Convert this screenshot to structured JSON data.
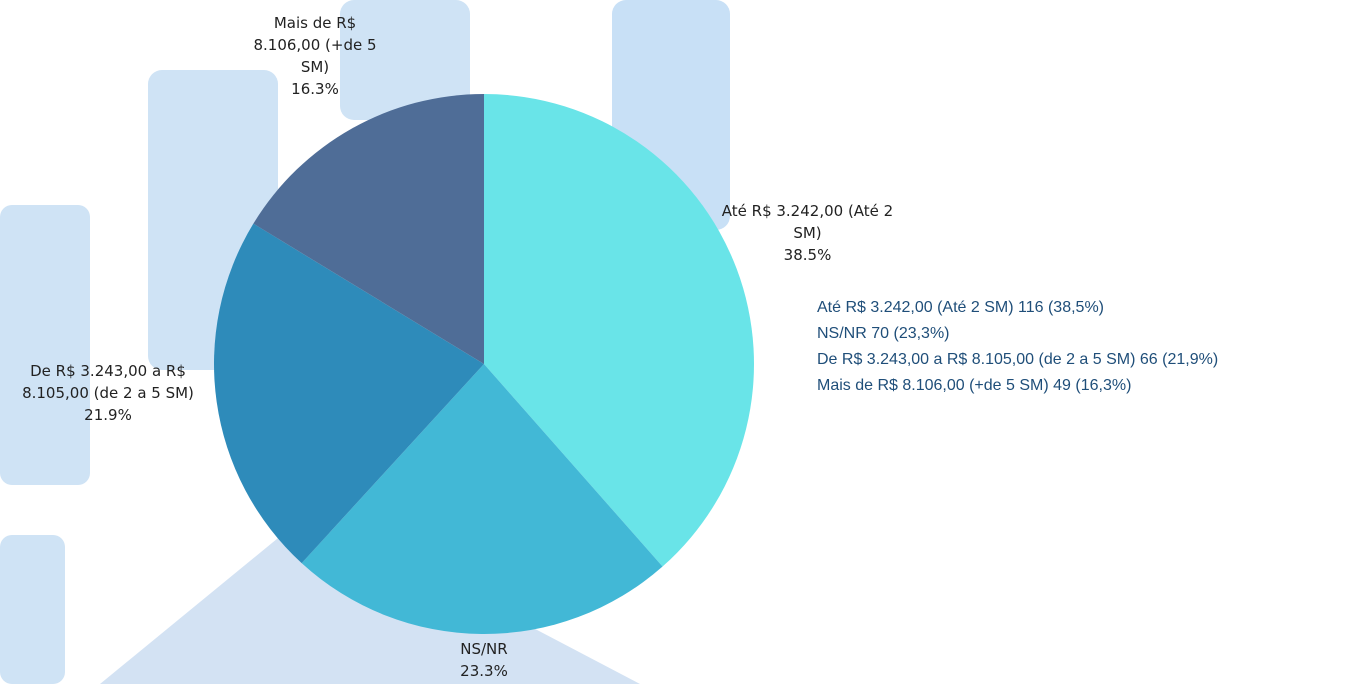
{
  "chart_data": {
    "type": "pie",
    "categories": [
      "Até R$ 3.242,00 (Até 2 SM)",
      "NS/NR",
      "De R$ 3.243,00 a R$ 8.105,00 (de 2 a 5 SM)",
      "Mais de R$ 8.106,00 (+de 5 SM)"
    ],
    "values": [
      38.5,
      23.3,
      21.9,
      16.3
    ],
    "value_labels": [
      "38.5%",
      "23.3%",
      "21.9%",
      "16.3%"
    ],
    "colors": [
      "#69e4e8",
      "#42b8d6",
      "#2e8bba",
      "#4f6d97"
    ],
    "counts": [
      116,
      70,
      66,
      49
    ],
    "count_percent_labels": [
      "(38,5%)",
      "(23,3%)",
      "(21,9%)",
      "(16,3%)"
    ]
  }
}
